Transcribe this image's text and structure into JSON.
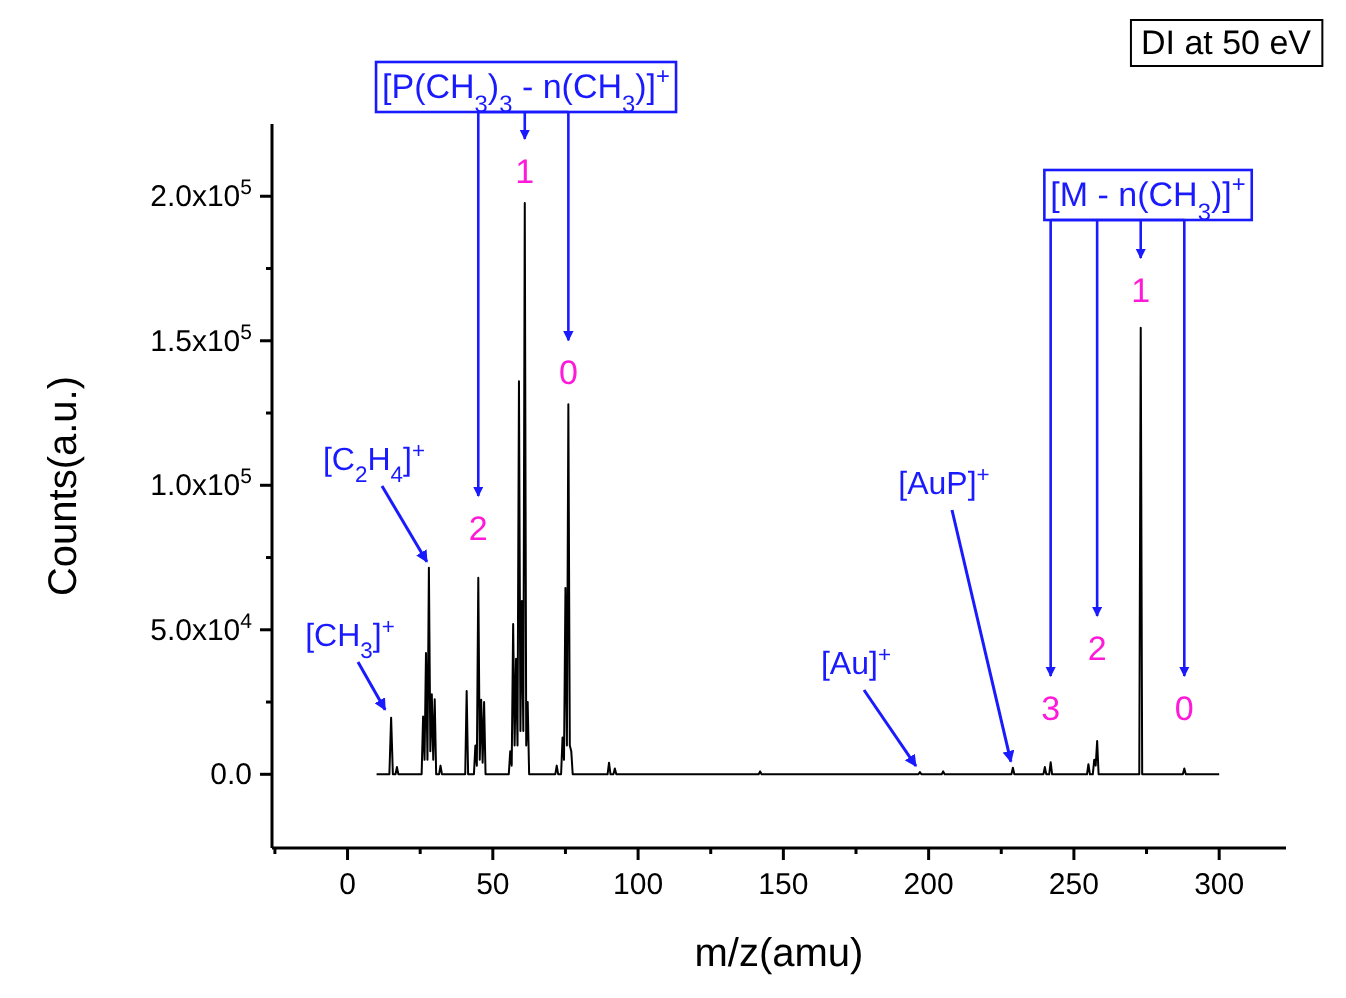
{
  "chart_data": {
    "type": "line",
    "xlabel": "m/z(amu)",
    "ylabel": "Counts(a.u.)",
    "xlim": [
      -26,
      323
    ],
    "ylim": [
      -25500,
      225000
    ],
    "xticks": [
      {
        "value": -25,
        "label": null
      },
      0,
      {
        "value": 25,
        "label": null
      },
      50,
      {
        "value": 75,
        "label": null
      },
      100,
      {
        "value": 125,
        "label": null
      },
      150,
      {
        "value": 175,
        "label": null
      },
      200,
      {
        "value": 225,
        "label": null
      },
      250,
      {
        "value": 275,
        "label": null
      },
      300
    ],
    "yticks": [
      {
        "value": 0,
        "label": "0.0"
      },
      {
        "value": 25000,
        "label": null
      },
      {
        "value": 50000,
        "label": "5.0x10$^{4}$"
      },
      {
        "value": 75000,
        "label": null
      },
      {
        "value": 100000,
        "label": "1.0x10$^{5}$"
      },
      {
        "value": 125000,
        "label": null
      },
      {
        "value": 150000,
        "label": "1.5x10$^{5}$"
      },
      {
        "value": 175000,
        "label": null
      },
      {
        "value": 200000,
        "label": "2.0x10$^{5}$"
      }
    ],
    "series": [
      {
        "color": "#000000",
        "x": [
          10,
          14.4,
          15,
          15.6,
          16.5,
          17,
          17.5,
          25.5,
          26,
          26.5,
          27,
          27.5,
          28,
          28.5,
          29,
          29.5,
          30,
          30.5,
          31.5,
          32,
          32.5,
          40.5,
          41,
          41.5,
          43.5,
          44,
          44.5,
          45,
          45.5,
          46,
          46.5,
          47,
          47.5,
          55.5,
          56,
          56.5,
          57,
          57.5,
          58,
          58.5,
          59,
          59.5,
          60,
          60.5,
          61,
          61.5,
          62,
          62.5,
          71.5,
          72,
          72.5,
          73.5,
          74,
          74.5,
          75,
          75.5,
          76,
          76.5,
          77,
          77.5,
          89.5,
          90,
          90.5,
          91.5,
          92,
          92.5,
          141.5,
          142,
          142.5,
          196.5,
          197,
          197.5,
          204.5,
          205,
          205.5,
          228.5,
          229,
          229.5,
          239.5,
          240,
          240.5,
          241.5,
          242,
          242.5,
          254.5,
          255,
          255.5,
          256.5,
          257,
          257.5,
          258,
          258.5,
          272.5,
          273,
          273.5,
          287.5,
          288,
          288.5,
          300
        ],
        "values": [
          0,
          0,
          19600,
          0,
          0,
          2500,
          0,
          0,
          20000,
          5000,
          42000,
          5000,
          71500,
          8000,
          27700,
          5000,
          26000,
          0,
          0,
          3000,
          0,
          0,
          28800,
          0,
          0,
          10000,
          3000,
          68000,
          5000,
          25800,
          4000,
          25000,
          0,
          0,
          8000,
          3000,
          52000,
          10000,
          40000,
          10000,
          136000,
          15000,
          60000,
          15000,
          197700,
          10000,
          25000,
          0,
          0,
          3000,
          0,
          0,
          12700,
          5000,
          64500,
          10000,
          128000,
          10000,
          8000,
          0,
          0,
          4000,
          0,
          0,
          2000,
          0,
          0,
          1000,
          0,
          0,
          800,
          0,
          0,
          1000,
          0,
          0,
          2300,
          0,
          0,
          2500,
          0,
          0,
          4200,
          0,
          0,
          3500,
          0,
          0,
          5000,
          3000,
          11500,
          0,
          0,
          154500,
          0,
          0,
          2000,
          0,
          0
        ]
      }
    ],
    "annotations": [
      {
        "text": "[CH$_{3}$]$^{+}$",
        "x": 15,
        "y": 19600
      },
      {
        "text": "[C$_{2}$H$_{4}$]$^{+}$",
        "x": 28,
        "y": 71500
      },
      "[P(CH$_{3}$)$_{3}$ - n(CH$_{3}$)]$^{+}$",
      {
        "text": "2",
        "x": 45,
        "y": 68000
      },
      {
        "text": "1",
        "x": 61,
        "y": 197700
      },
      {
        "text": "0",
        "x": 76,
        "y": 128000
      },
      {
        "text": "[Au]$^{+}$",
        "x": 197,
        "y": 800
      },
      {
        "text": "[AuP]$^{+}$",
        "x": 229,
        "y": 2300
      },
      "[M - n(CH$_{3}$)]$^{+}$",
      {
        "text": "3",
        "x": 242,
        "y": 4200
      },
      {
        "text": "2",
        "x": 258,
        "y": 11500
      },
      {
        "text": "1",
        "x": 273,
        "y": 154500
      },
      {
        "text": "0",
        "x": 288,
        "y": 2000
      },
      "DI at 50 eV"
    ]
  }
}
